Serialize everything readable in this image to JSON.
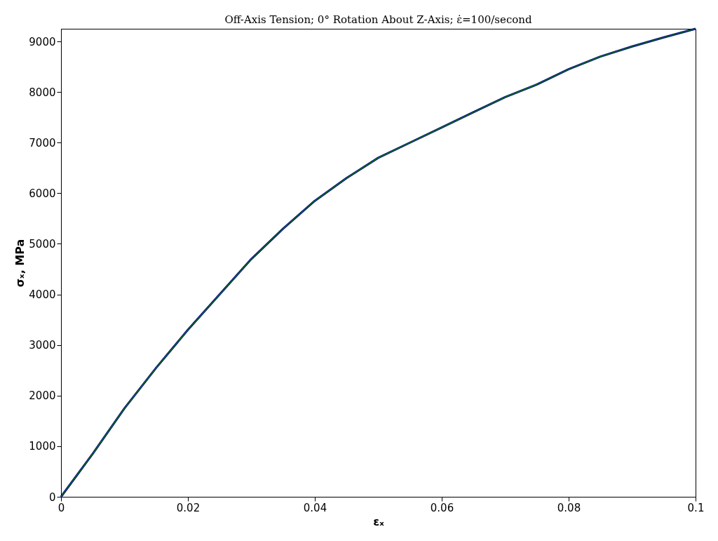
{
  "chart_data": {
    "type": "line",
    "title": "Off-Axis Tension; 0° Rotation About Z-Axis; ε̇=100/second",
    "xlabel": "εₓ",
    "ylabel": "σₓ, MPa",
    "x": [
      0,
      0.005,
      0.01,
      0.015,
      0.02,
      0.025,
      0.03,
      0.035,
      0.04,
      0.045,
      0.05,
      0.055,
      0.06,
      0.065,
      0.07,
      0.075,
      0.08,
      0.085,
      0.09,
      0.095,
      0.1
    ],
    "series": [
      {
        "color": "#00008b",
        "values": [
          0,
          850,
          1750,
          2550,
          3300,
          4000,
          4700,
          5300,
          5850,
          6300,
          6700,
          7000,
          7300,
          7600,
          7900,
          8150,
          8450,
          8700,
          8900,
          9080,
          9250
        ]
      },
      {
        "color": "#008000",
        "values": [
          0,
          850,
          1750,
          2550,
          3300,
          4000,
          4700,
          5300,
          5850,
          6300,
          6700,
          7000,
          7300,
          7600,
          7900,
          8150,
          8450,
          8700,
          8900,
          9080,
          9250
        ]
      }
    ],
    "xlim": [
      0,
      0.1
    ],
    "xticks": [
      0,
      0.02,
      0.04,
      0.06,
      0.08,
      0.1
    ],
    "ylim": [
      0,
      9250
    ],
    "yticks": [
      0,
      1000,
      2000,
      3000,
      4000,
      5000,
      6000,
      7000,
      8000,
      9000
    ],
    "grid": false,
    "marker": "none",
    "line_style": "solid"
  }
}
